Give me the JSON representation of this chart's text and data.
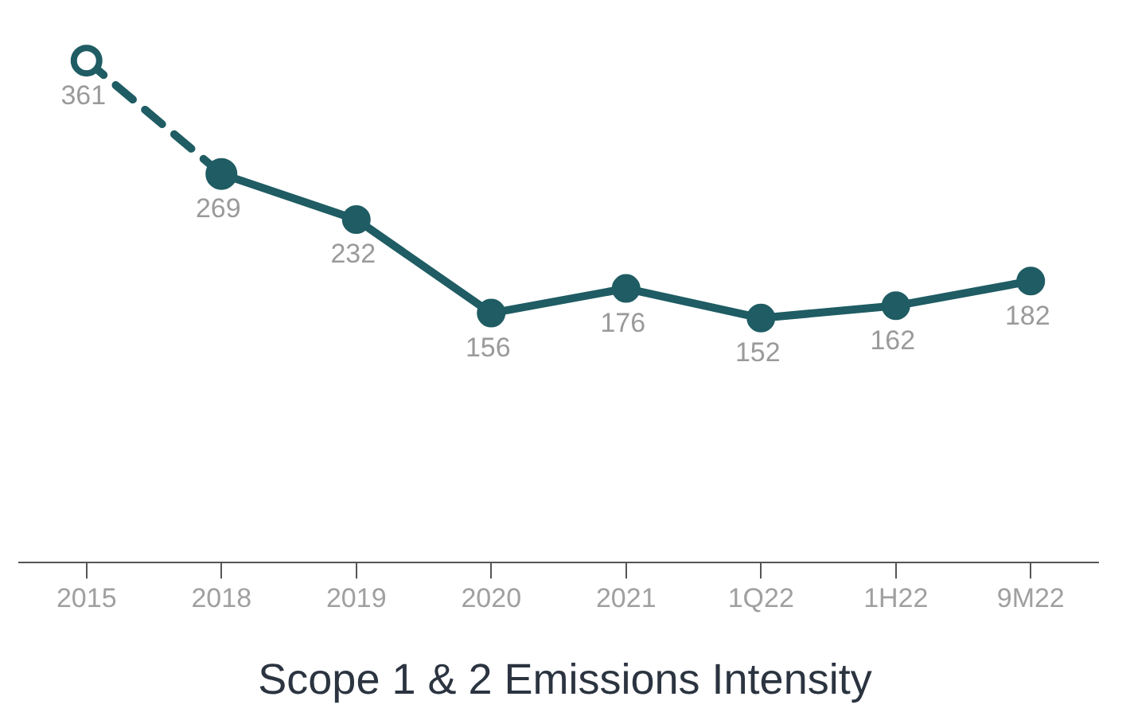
{
  "chart_data": {
    "type": "line",
    "title": "Scope 1 & 2 Emissions Intensity",
    "categories": [
      "2015",
      "2018",
      "2019",
      "2020",
      "2021",
      "1Q22",
      "1H22",
      "9M22"
    ],
    "series": [
      {
        "color": "#1f5c63",
        "line_style": "dashed",
        "marker": "circle",
        "values": [
          361,
          269,
          null,
          null,
          null,
          null,
          null,
          null
        ],
        "value_labels": [
          "361",
          null,
          null,
          null,
          null,
          null,
          null,
          null
        ]
      },
      {
        "color": "#1f5c63",
        "line_style": "solid",
        "marker": "circle",
        "values": [
          null,
          269,
          232,
          156,
          176,
          152,
          162,
          182
        ],
        "value_labels": [
          null,
          "269",
          "232",
          "156",
          "176",
          "152",
          "162",
          "182"
        ]
      }
    ],
    "grid": false,
    "legend": false,
    "tick_labels": "x"
  }
}
